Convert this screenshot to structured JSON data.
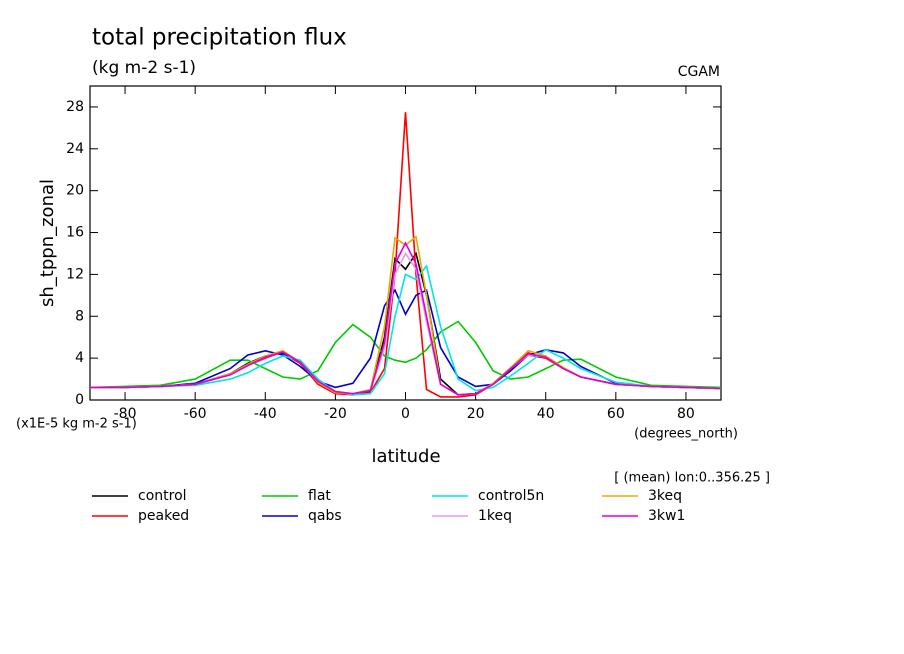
{
  "chart_data": {
    "type": "line",
    "title": "total precipitation flux",
    "subtitle": "(kg m-2 s-1)",
    "source": "CGAM",
    "y_label": "sh_tppn_zonal",
    "y_units": "(x1E-5 kg m-2 s-1)",
    "x_label": "latitude",
    "x_units": "(degrees_north)",
    "note": "[ (mean) lon:0..356.25 ]",
    "xlim": [
      -90,
      90
    ],
    "ylim": [
      0,
      30
    ],
    "xticks": [
      -80,
      -60,
      -40,
      -20,
      0,
      20,
      40,
      60,
      80
    ],
    "yticks": [
      0,
      4,
      8,
      12,
      16,
      20,
      24,
      28
    ],
    "x": [
      -90,
      -80,
      -70,
      -60,
      -50,
      -45,
      -40,
      -35,
      -30,
      -25,
      -20,
      -15,
      -10,
      -6,
      -3,
      0,
      3,
      6,
      10,
      15,
      20,
      25,
      30,
      35,
      40,
      45,
      50,
      60,
      70,
      80,
      90
    ],
    "series": [
      {
        "name": "control",
        "color": "#000000",
        "values": [
          1.2,
          1.2,
          1.3,
          1.5,
          2.5,
          3.5,
          4.2,
          4.5,
          3.5,
          1.8,
          0.8,
          0.5,
          0.8,
          6,
          13.5,
          12.5,
          14,
          10,
          2,
          0.5,
          0.6,
          1.5,
          3,
          4.3,
          4,
          3,
          2.2,
          1.5,
          1.3,
          1.2,
          1.1
        ]
      },
      {
        "name": "peaked",
        "color": "#ff0000",
        "values": [
          1.2,
          1.2,
          1.3,
          1.5,
          2.5,
          3.3,
          4,
          4.6,
          3.5,
          1.5,
          0.6,
          0.5,
          0.7,
          3,
          12,
          27.5,
          12,
          1,
          0.3,
          0.3,
          0.5,
          1.5,
          3,
          4.5,
          4,
          3,
          2.2,
          1.5,
          1.3,
          1.2,
          1.1
        ]
      },
      {
        "name": "flat",
        "color": "#00cc00",
        "values": [
          1.2,
          1.3,
          1.4,
          2,
          3.8,
          3.8,
          3,
          2.2,
          2,
          2.8,
          5.5,
          7.2,
          6,
          4.2,
          3.8,
          3.6,
          4,
          4.8,
          6.5,
          7.5,
          5.5,
          2.8,
          2,
          2.2,
          3,
          3.8,
          3.9,
          2.2,
          1.4,
          1.3,
          1.2
        ]
      },
      {
        "name": "qabs",
        "color": "#0000cc",
        "values": [
          1.2,
          1.2,
          1.3,
          1.6,
          3,
          4.3,
          4.7,
          4.3,
          3.2,
          1.8,
          1.2,
          1.6,
          4,
          9,
          10.5,
          8.2,
          10,
          10.5,
          5,
          2.2,
          1.3,
          1.5,
          2.8,
          4.3,
          4.8,
          4.5,
          3.2,
          1.6,
          1.3,
          1.2,
          1.1
        ]
      },
      {
        "name": "control5n",
        "color": "#00e5e5",
        "values": [
          1.2,
          1.2,
          1.3,
          1.4,
          2,
          2.6,
          3.5,
          4.2,
          3.8,
          2,
          0.8,
          0.5,
          0.6,
          2.5,
          8,
          12,
          11.5,
          12.8,
          7,
          2,
          0.9,
          1.2,
          2.3,
          3.5,
          4.8,
          4,
          3,
          1.7,
          1.3,
          1.2,
          1.1
        ]
      },
      {
        "name": "1keq",
        "color": "#e89ae0",
        "values": [
          1.2,
          1.2,
          1.3,
          1.5,
          2.4,
          3.3,
          4.1,
          4.6,
          3.6,
          1.8,
          0.8,
          0.6,
          0.9,
          5,
          12,
          14,
          12.5,
          7.5,
          1.5,
          0.5,
          0.6,
          1.5,
          3,
          4.3,
          4.1,
          3,
          2.2,
          1.5,
          1.3,
          1.2,
          1.1
        ]
      },
      {
        "name": "3keq",
        "color": "#e8a800",
        "values": [
          1.2,
          1.2,
          1.3,
          1.5,
          2.5,
          3.4,
          4.2,
          4.7,
          3.6,
          1.7,
          0.7,
          0.6,
          1,
          7,
          15.5,
          14.8,
          15.6,
          10,
          1.5,
          0.5,
          0.6,
          1.6,
          3.1,
          4.7,
          4.2,
          3.1,
          2.2,
          1.5,
          1.3,
          1.2,
          1.1
        ]
      },
      {
        "name": "3kw1",
        "color": "#dd00dd",
        "values": [
          1.2,
          1.2,
          1.3,
          1.5,
          2.4,
          3.3,
          4.1,
          4.6,
          3.6,
          1.8,
          0.8,
          0.6,
          0.9,
          5.5,
          13,
          15,
          13,
          8,
          1.5,
          0.5,
          0.6,
          1.5,
          3,
          4.4,
          4.1,
          3,
          2.2,
          1.5,
          1.3,
          1.2,
          1.1
        ]
      }
    ]
  }
}
